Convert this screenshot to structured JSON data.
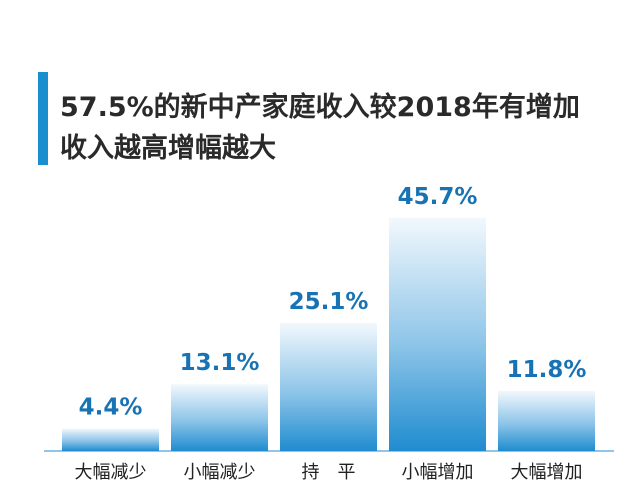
{
  "chart_data": {
    "type": "bar",
    "title_lines": [
      "57.5%的新中产家庭收入较2018年有增加",
      "收入越高增幅越大"
    ],
    "categories": [
      "大幅减少",
      "小幅减少",
      "持　平",
      "小幅增加",
      "大幅增加"
    ],
    "values": [
      4.4,
      13.1,
      25.1,
      45.7,
      11.8
    ],
    "value_labels": [
      "4.4%",
      "13.1%",
      "25.1%",
      "45.7%",
      "11.8%"
    ],
    "ylim": [
      0,
      50
    ],
    "grid": false,
    "colors": {
      "bar_top": "#f2f8fd",
      "bar_bottom": "#1f8ccf",
      "label": "#1873b5",
      "accent": "#1a8fd0"
    }
  }
}
